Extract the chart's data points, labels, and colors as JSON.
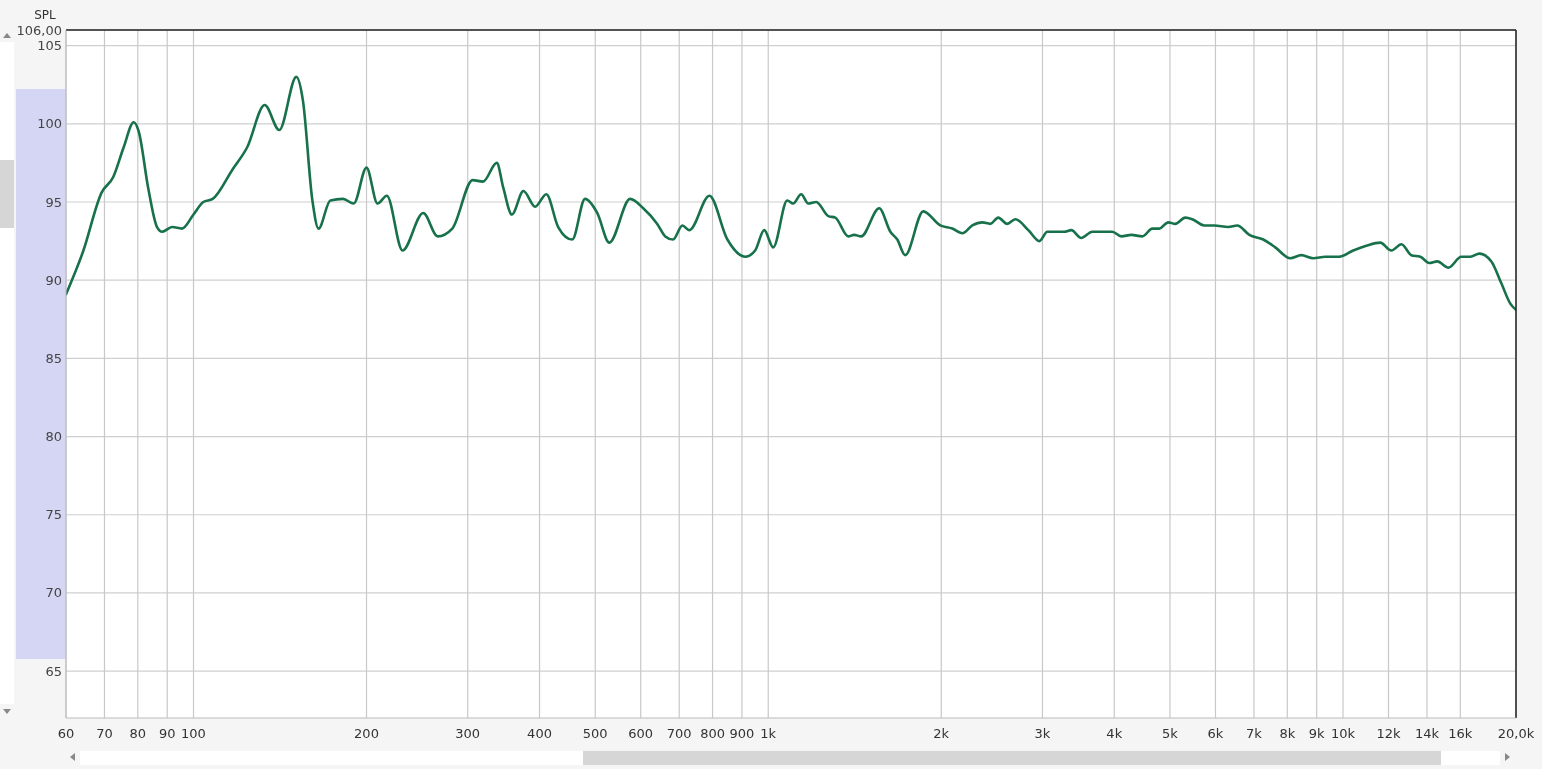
{
  "chart_data": {
    "type": "line",
    "ylabel": "SPL",
    "log": "x",
    "grid": true,
    "marker": "none",
    "line_style": "solid",
    "xlim": [
      60,
      20000
    ],
    "ylim": [
      62,
      106
    ],
    "xticks": [
      60,
      70,
      80,
      90,
      100,
      200,
      300,
      400,
      500,
      600,
      700,
      800,
      900,
      {
        "value": 1000,
        "label": "1k"
      },
      {
        "value": 2000,
        "label": "2k"
      },
      {
        "value": 3000,
        "label": "3k"
      },
      {
        "value": 4000,
        "label": "4k"
      },
      {
        "value": 5000,
        "label": "5k"
      },
      {
        "value": 6000,
        "label": "6k"
      },
      {
        "value": 7000,
        "label": "7k"
      },
      {
        "value": 8000,
        "label": "8k"
      },
      {
        "value": 9000,
        "label": "9k"
      },
      {
        "value": 10000,
        "label": "10k"
      },
      {
        "value": 12000,
        "label": "12k"
      },
      {
        "value": 14000,
        "label": "14k"
      },
      {
        "value": 16000,
        "label": "16k"
      },
      {
        "value": 20000,
        "label": "20,0k"
      }
    ],
    "yticks": [
      65,
      70,
      75,
      80,
      85,
      90,
      95,
      100,
      105,
      {
        "value": 106,
        "label": "106,00"
      }
    ],
    "series": [
      {
        "color": "#17714a",
        "x": [
          60,
          64.2,
          69.2,
          72.5,
          75.6,
          78.7,
          80.3,
          83.4,
          86.4,
          88.2,
          91.8,
          95.5,
          100,
          104,
          108,
          117,
          124,
          133,
          141,
          151,
          155,
          161,
          165,
          173,
          182,
          190,
          200,
          209,
          217,
          231,
          251,
          266,
          282,
          306,
          319,
          337,
          346,
          358,
          375,
          393,
          411,
          431,
          456,
          480,
          504,
          529,
          575,
          606,
          641,
          662,
          683,
          709,
          729,
          790,
          849,
          912,
          949,
          984,
          1020,
          1079,
          1105,
          1141,
          1174,
          1212,
          1272,
          1308,
          1378,
          1411,
          1451,
          1560,
          1631,
          1677,
          1731,
          1861,
          1992,
          2090,
          2176,
          2265,
          2357,
          2434,
          2513,
          2605,
          2691,
          2835,
          2963,
          3059,
          3158,
          3274,
          3367,
          3505,
          3663,
          3782,
          3968,
          4114,
          4282,
          4476,
          4659,
          4791,
          4966,
          5107,
          5316,
          5467,
          5736,
          5970,
          6315,
          6547,
          6871,
          7266,
          7624,
          8095,
          8461,
          8877,
          9316,
          9854,
          10420,
          10980,
          11610,
          12140,
          12640,
          13150,
          13630,
          14130,
          14590,
          15250,
          16070,
          16660,
          17270,
          18120,
          18860,
          19550,
          20000
        ],
        "values": [
          89.1,
          91.8,
          95.6,
          96.6,
          98.5,
          100.1,
          99.5,
          95.9,
          93.4,
          93.1,
          93.4,
          93.3,
          94.2,
          95.0,
          95.2,
          97.1,
          98.5,
          101.2,
          99.6,
          103.0,
          101.5,
          95.1,
          93.3,
          95.1,
          95.2,
          94.9,
          97.2,
          94.9,
          95.4,
          91.9,
          94.3,
          92.8,
          93.3,
          96.4,
          96.3,
          97.5,
          95.9,
          94.2,
          95.7,
          94.7,
          95.5,
          93.4,
          92.6,
          95.2,
          94.3,
          92.4,
          95.2,
          94.6,
          93.6,
          92.8,
          92.6,
          93.5,
          93.2,
          95.4,
          92.6,
          91.5,
          91.9,
          93.2,
          92.1,
          95.1,
          94.9,
          95.5,
          94.9,
          95.0,
          94.1,
          94.0,
          92.8,
          92.9,
          92.8,
          94.6,
          93.1,
          92.6,
          91.6,
          94.4,
          93.5,
          93.3,
          93.0,
          93.5,
          93.7,
          93.6,
          94.0,
          93.6,
          93.9,
          93.2,
          92.5,
          93.1,
          93.1,
          93.1,
          93.2,
          92.7,
          93.1,
          93.1,
          93.1,
          92.8,
          92.9,
          92.8,
          93.3,
          93.3,
          93.7,
          93.6,
          94.0,
          93.9,
          93.5,
          93.5,
          93.4,
          93.5,
          92.9,
          92.6,
          92.1,
          91.4,
          91.6,
          91.4,
          91.5,
          91.5,
          91.9,
          92.2,
          92.4,
          91.9,
          92.3,
          91.6,
          91.5,
          91.1,
          91.2,
          90.8,
          91.5,
          91.5,
          91.7,
          91.2,
          89.8,
          88.5,
          88.1
        ]
      }
    ]
  }
}
